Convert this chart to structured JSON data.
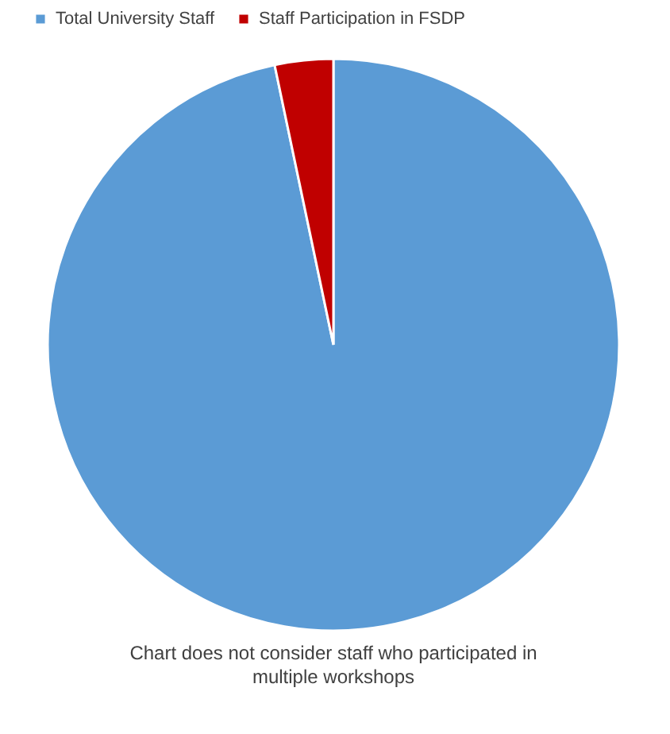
{
  "chart_data": {
    "type": "pie",
    "categories": [
      "Total University Staff",
      "Staff Participation in FSDP"
    ],
    "values": [
      96.7,
      3.3
    ],
    "colors": [
      "#5b9bd5",
      "#c00000"
    ],
    "legend": "top",
    "annotations": [
      "Chart does not consider staff who participated in multiple workshops"
    ]
  }
}
